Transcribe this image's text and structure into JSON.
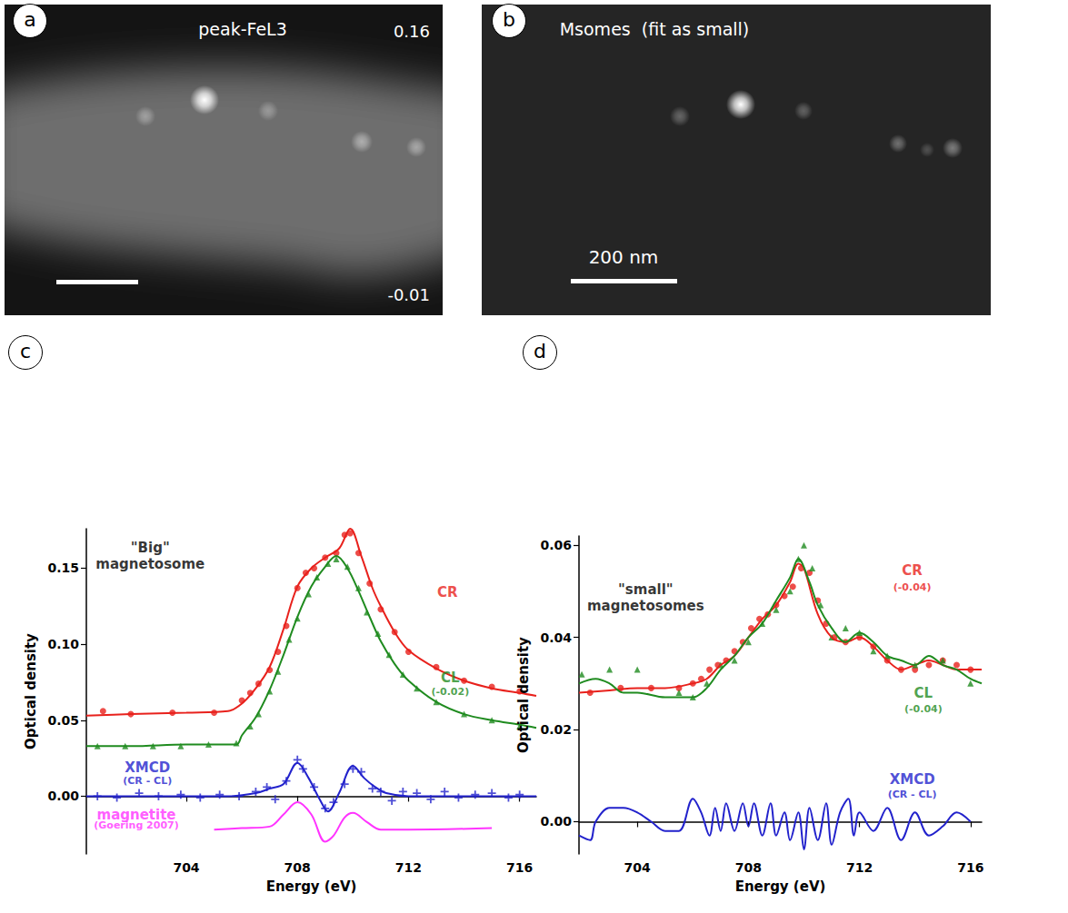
{
  "images": [
    {
      "panel": "a",
      "title": "peak-FeL3",
      "scale_max": 0.16,
      "scale_min": -0.01
    },
    {
      "panel": "b",
      "title": "Msomes  (fit as small)",
      "scale_bar": "200 nm"
    }
  ],
  "chart_data": [
    {
      "type": "line",
      "panel": "c",
      "xlabel": "Energy (eV)",
      "ylabel": "Optical density",
      "xlim": [
        700.4,
        716.6
      ],
      "xticks": [
        704,
        708,
        712,
        716
      ],
      "ylim": [
        -0.038,
        0.176
      ],
      "yticks": [
        {
          "value": 0,
          "label": "0.00"
        },
        {
          "value": 0.05,
          "label": "0.05"
        },
        {
          "value": 0.1,
          "label": "0.10"
        },
        {
          "value": 0.15,
          "label": "0.15"
        }
      ],
      "grid": false,
      "series": [
        {
          "type": "line",
          "color": "#e8211c",
          "line_style": "solid",
          "x": [
            700.4,
            702,
            704,
            705.5,
            706,
            706.5,
            707,
            707.5,
            708,
            708.5,
            709,
            709.5,
            709.9,
            710.3,
            710.7,
            711,
            711.5,
            712,
            713,
            714,
            715,
            716,
            716.6
          ],
          "values": [
            0.053,
            0.054,
            0.055,
            0.056,
            0.061,
            0.071,
            0.085,
            0.11,
            0.138,
            0.15,
            0.157,
            0.163,
            0.176,
            0.158,
            0.137,
            0.125,
            0.108,
            0.096,
            0.084,
            0.076,
            0.071,
            0.068,
            0.066
          ]
        },
        {
          "type": "scatter",
          "color": "#e8211c",
          "marker": "circle",
          "x": [
            701,
            702,
            703.5,
            705,
            706,
            706.3,
            706.6,
            707,
            707.3,
            707.6,
            708,
            708.3,
            708.6,
            709,
            709.4,
            709.7,
            709.9,
            710.2,
            710.6,
            711,
            711.5,
            712,
            713,
            714,
            715,
            716
          ],
          "values": [
            0.056,
            0.054,
            0.055,
            0.055,
            0.063,
            0.068,
            0.074,
            0.083,
            0.095,
            0.112,
            0.137,
            0.147,
            0.15,
            0.157,
            0.16,
            0.172,
            0.173,
            0.16,
            0.14,
            0.123,
            0.108,
            0.095,
            0.085,
            0.076,
            0.072,
            0.069
          ]
        },
        {
          "type": "line",
          "color": "#1f8b1f",
          "line_style": "solid",
          "x": [
            700.4,
            702,
            704,
            705.8,
            706,
            706.5,
            707,
            707.5,
            708,
            708.5,
            709,
            709.4,
            709.8,
            710.2,
            710.6,
            711,
            711.5,
            712,
            713,
            714,
            715,
            716,
            716.6
          ],
          "values": [
            0.033,
            0.033,
            0.034,
            0.034,
            0.04,
            0.052,
            0.07,
            0.093,
            0.118,
            0.138,
            0.151,
            0.158,
            0.15,
            0.135,
            0.118,
            0.102,
            0.087,
            0.076,
            0.062,
            0.054,
            0.05,
            0.047,
            0.045
          ]
        },
        {
          "type": "scatter",
          "color": "#1f8b1f",
          "marker": "triangle",
          "x": [
            700.8,
            701.8,
            702.8,
            703.8,
            704.8,
            705.8,
            706.3,
            706.6,
            707,
            707.3,
            707.7,
            708,
            708.4,
            708.7,
            709.1,
            709.4,
            709.8,
            710.2,
            710.5,
            710.9,
            711.3,
            711.8,
            712.3,
            713,
            714,
            715,
            716
          ],
          "values": [
            0.033,
            0.033,
            0.033,
            0.033,
            0.034,
            0.035,
            0.046,
            0.054,
            0.069,
            0.082,
            0.103,
            0.117,
            0.133,
            0.144,
            0.153,
            0.156,
            0.151,
            0.137,
            0.121,
            0.107,
            0.093,
            0.08,
            0.071,
            0.062,
            0.054,
            0.05,
            0.046
          ]
        },
        {
          "type": "line",
          "color": "#2222cc",
          "line_style": "solid",
          "x": [
            700.4,
            705.5,
            706.5,
            707,
            707.5,
            708,
            708.4,
            708.8,
            709.1,
            709.5,
            710,
            710.4,
            710.8,
            711.2,
            712,
            716.6
          ],
          "values": [
            0,
            0,
            0.002,
            0.005,
            0.008,
            0.022,
            0.012,
            -0.002,
            -0.01,
            0.002,
            0.02,
            0.012,
            0.006,
            0.002,
            0,
            0
          ]
        },
        {
          "type": "scatter",
          "color": "#2222cc",
          "marker": "cross",
          "x": [
            700.8,
            701.5,
            702.3,
            703,
            703.8,
            704.5,
            705.2,
            705.9,
            706.5,
            706.9,
            707.2,
            707.6,
            708,
            708.2,
            708.6,
            709,
            709.3,
            709.7,
            710,
            710.3,
            710.7,
            711,
            711.4,
            711.8,
            712.3,
            712.8,
            713.3,
            713.8,
            714.4,
            715,
            715.6,
            716
          ],
          "values": [
            0.0,
            -0.001,
            0.002,
            0.0,
            0.001,
            -0.001,
            0.001,
            0.0,
            0.003,
            0.006,
            -0.002,
            0.01,
            0.024,
            0.018,
            0.006,
            -0.008,
            -0.004,
            0.008,
            0.018,
            0.016,
            0.005,
            0.003,
            -0.003,
            0.003,
            0.002,
            -0.002,
            0.003,
            -0.001,
            0.001,
            0.002,
            -0.001,
            0.001
          ]
        },
        {
          "type": "line",
          "color": "#ff33ff",
          "line_style": "solid",
          "x": [
            705,
            706,
            707,
            707.5,
            708,
            708.5,
            709,
            709.3,
            709.7,
            710,
            710.5,
            711,
            712,
            715
          ],
          "values": [
            -0.022,
            -0.021,
            -0.02,
            -0.012,
            -0.004,
            -0.012,
            -0.03,
            -0.026,
            -0.014,
            -0.011,
            -0.017,
            -0.022,
            -0.022,
            -0.021
          ]
        }
      ],
      "annotations": [
        {
          "text": [
            "\"Big\"",
            "magnetosome"
          ],
          "x": 702.7,
          "y": 0.158,
          "color": "#000000"
        },
        {
          "text": [
            "CR"
          ],
          "x": 713.4,
          "y": 0.134,
          "color": "#e8211c"
        },
        {
          "text": [
            "CL"
          ],
          "x": 713.5,
          "y": 0.078,
          "color": "#1f8b1f"
        },
        {
          "text": [
            "(-0.02)"
          ],
          "x": 713.5,
          "y": 0.069,
          "color": "#1f8b1f"
        },
        {
          "text": [
            "XMCD"
          ],
          "x": 702.6,
          "y": 0.019,
          "color": "#2222cc"
        },
        {
          "text": [
            "(CR - CL)"
          ],
          "x": 702.6,
          "y": 0.01,
          "color": "#2222cc"
        },
        {
          "text": [
            "magnetite"
          ],
          "x": 702.2,
          "y": -0.012,
          "color": "#ff33ff"
        },
        {
          "text": [
            "(Goering 2007)"
          ],
          "x": 702.2,
          "y": -0.019,
          "color": "#ff33ff"
        }
      ]
    },
    {
      "type": "line",
      "panel": "d",
      "xlabel": "Energy (eV)",
      "ylabel": "Optical density",
      "xlim": [
        701.9,
        716.4
      ],
      "xticks": [
        704,
        708,
        712,
        716
      ],
      "ylim": [
        -0.007,
        0.062
      ],
      "yticks": [
        {
          "value": 0,
          "label": "0.00"
        },
        {
          "value": 0.02,
          "label": "0.02"
        },
        {
          "value": 0.04,
          "label": "0.04"
        },
        {
          "value": 0.06,
          "label": "0.06"
        }
      ],
      "grid": false,
      "series": [
        {
          "type": "line",
          "color": "#e8211c",
          "line_style": "solid",
          "x": [
            701.9,
            703,
            704,
            705,
            706,
            706.5,
            707,
            707.5,
            708,
            708.5,
            709,
            709.5,
            709.8,
            710,
            710.5,
            711,
            711.5,
            712,
            712.5,
            713,
            713.5,
            714,
            714.5,
            715,
            715.5,
            716,
            716.4
          ],
          "values": [
            0.028,
            0.0285,
            0.029,
            0.029,
            0.03,
            0.031,
            0.034,
            0.036,
            0.04,
            0.044,
            0.047,
            0.052,
            0.056,
            0.055,
            0.045,
            0.04,
            0.039,
            0.04,
            0.038,
            0.035,
            0.033,
            0.034,
            0.035,
            0.034,
            0.033,
            0.033,
            0.033
          ]
        },
        {
          "type": "scatter",
          "color": "#e8211c",
          "marker": "circle",
          "x": [
            702.3,
            703.4,
            704.5,
            705.5,
            706,
            706.3,
            706.6,
            706.9,
            707.2,
            707.5,
            707.8,
            708.1,
            708.4,
            708.7,
            709,
            709.3,
            709.6,
            709.9,
            710.2,
            710.5,
            710.8,
            711.1,
            711.5,
            712,
            712.5,
            713,
            713.5,
            714,
            714.5,
            715,
            715.5,
            716
          ],
          "values": [
            0.028,
            0.029,
            0.029,
            0.029,
            0.03,
            0.031,
            0.033,
            0.034,
            0.035,
            0.037,
            0.039,
            0.042,
            0.044,
            0.045,
            0.047,
            0.049,
            0.051,
            0.055,
            0.054,
            0.048,
            0.043,
            0.04,
            0.039,
            0.04,
            0.038,
            0.035,
            0.033,
            0.033,
            0.034,
            0.035,
            0.034,
            0.033
          ]
        },
        {
          "type": "line",
          "color": "#1f8b1f",
          "line_style": "solid",
          "x": [
            701.9,
            702.5,
            703,
            703.5,
            704,
            705,
            706,
            706.5,
            707,
            707.5,
            708,
            708.5,
            709,
            709.5,
            709.8,
            710.2,
            710.5,
            711,
            711.5,
            712,
            712.5,
            713,
            713.5,
            714,
            714.5,
            715,
            715.5,
            716,
            716.4
          ],
          "values": [
            0.03,
            0.031,
            0.03,
            0.028,
            0.028,
            0.027,
            0.027,
            0.029,
            0.033,
            0.036,
            0.04,
            0.043,
            0.048,
            0.053,
            0.057,
            0.052,
            0.047,
            0.042,
            0.039,
            0.041,
            0.039,
            0.036,
            0.035,
            0.034,
            0.036,
            0.034,
            0.033,
            0.031,
            0.03
          ]
        },
        {
          "type": "scatter",
          "color": "#1f8b1f",
          "marker": "triangle",
          "x": [
            702,
            703,
            704,
            705.5,
            706,
            706.5,
            707,
            707.5,
            708,
            708.5,
            709,
            709.5,
            709.8,
            710,
            710.3,
            710.6,
            711,
            711.5,
            712,
            712.5,
            713,
            714,
            715,
            716
          ],
          "values": [
            0.032,
            0.033,
            0.033,
            0.028,
            0.027,
            0.03,
            0.034,
            0.035,
            0.039,
            0.043,
            0.046,
            0.05,
            0.057,
            0.06,
            0.055,
            0.047,
            0.04,
            0.042,
            0.041,
            0.037,
            0.036,
            0.034,
            0.035,
            0.03
          ]
        },
        {
          "type": "line",
          "color": "#2222cc",
          "line_style": "solid",
          "x": [
            701.9,
            702.3,
            702.5,
            703,
            703.5,
            704,
            704.5,
            705,
            705.5,
            706,
            706.3,
            706.6,
            706.8,
            707,
            707.2,
            707.5,
            707.8,
            708,
            708.2,
            708.5,
            708.8,
            709,
            709.3,
            709.5,
            709.8,
            710,
            710.2,
            710.5,
            710.8,
            711,
            711.3,
            711.6,
            711.8,
            712,
            712.5,
            713,
            713.5,
            714,
            714.5,
            715,
            715.5,
            716
          ],
          "values": [
            -0.003,
            -0.004,
            0.0,
            0.003,
            0.003,
            0.002,
            0.0,
            -0.002,
            -0.002,
            0.005,
            0.002,
            -0.003,
            0.003,
            -0.002,
            0.004,
            -0.002,
            0.004,
            -0.001,
            0.004,
            -0.003,
            0.004,
            -0.003,
            0.002,
            -0.004,
            0.002,
            -0.006,
            0.003,
            -0.004,
            0.004,
            -0.005,
            0.002,
            0.005,
            -0.003,
            0.002,
            -0.002,
            0.003,
            -0.004,
            0.002,
            -0.003,
            -0.001,
            0.002,
            0.0
          ]
        }
      ],
      "annotations": [
        {
          "text": [
            "\"small\"",
            "magnetosomes"
          ],
          "x": 704.3,
          "y": 0.0485,
          "color": "#000000"
        },
        {
          "text": [
            "CR"
          ],
          "x": 713.9,
          "y": 0.0545,
          "color": "#e8211c"
        },
        {
          "text": [
            "(-0.04)"
          ],
          "x": 713.9,
          "y": 0.0508,
          "color": "#e8211c"
        },
        {
          "text": [
            "CL"
          ],
          "x": 714.3,
          "y": 0.0278,
          "color": "#1f8b1f"
        },
        {
          "text": [
            "(-0.04)"
          ],
          "x": 714.3,
          "y": 0.0244,
          "color": "#1f8b1f"
        },
        {
          "text": [
            "XMCD"
          ],
          "x": 713.9,
          "y": 0.0092,
          "color": "#2222cc"
        },
        {
          "text": [
            "(CR - CL)"
          ],
          "x": 713.9,
          "y": 0.0059,
          "color": "#2222cc"
        }
      ]
    }
  ]
}
